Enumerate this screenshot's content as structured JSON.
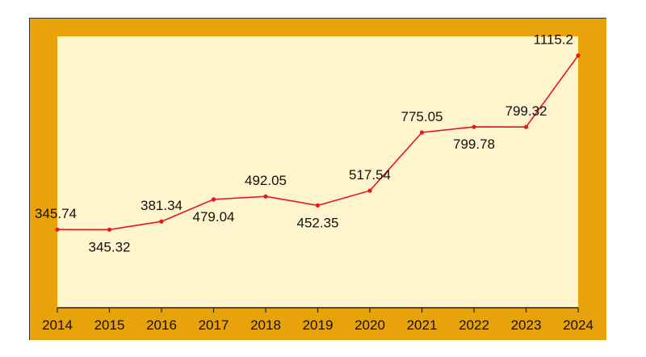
{
  "chart_data": {
    "type": "line",
    "categories": [
      "2014",
      "2015",
      "2016",
      "2017",
      "2018",
      "2019",
      "2020",
      "2021",
      "2022",
      "2023",
      "2024"
    ],
    "series": [
      {
        "values": [
          345.74,
          345.32,
          381.34,
          479.04,
          492.05,
          452.35,
          517.54,
          775.05,
          799.78,
          799.32,
          1115.2
        ],
        "labels": [
          "345.74",
          "345.32",
          "381.34",
          "479.04",
          "492.05",
          "452.35",
          "517.54",
          "775.05",
          "799.78",
          "799.32",
          "1115.2"
        ],
        "color": "#e8161f"
      }
    ],
    "title": "",
    "xlabel": "",
    "ylabel": "",
    "ylim": [
      0,
      1200
    ],
    "grid": false,
    "legend": "none",
    "colors": {
      "frame": "#e9a30a",
      "plot_area": "#fff5cc",
      "line": "#e8161f",
      "axis": "#222222"
    }
  }
}
